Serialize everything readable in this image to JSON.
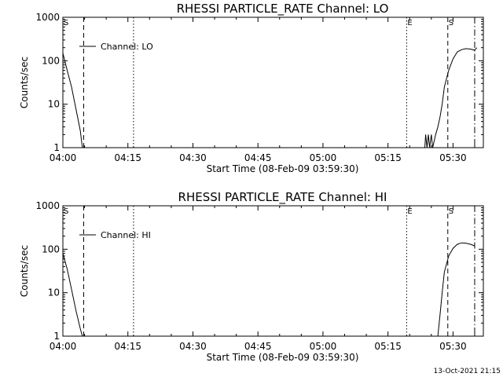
{
  "chart_data": [
    {
      "type": "line",
      "title": "RHESSI PARTICLE_RATE Channel: LO",
      "xlabel": "Start Time (08-Feb-09 03:59:30)",
      "ylabel": "Counts/sec",
      "xlim": [
        "04:00",
        "05:37"
      ],
      "xticks": [
        "04:00",
        "04:15",
        "04:30",
        "04:45",
        "05:00",
        "05:15",
        "05:30"
      ],
      "ylog": true,
      "ylim": [
        1,
        1000
      ],
      "yticks": [
        "1",
        "10",
        "100",
        "1000"
      ],
      "legend_position": "top-left",
      "series": [
        {
          "name": "Channel: LO",
          "x": [
            "04:00",
            "04:01",
            "04:02",
            "04:03",
            "04:04",
            "04:04.5",
            "05:23.5",
            "05:23.7",
            "05:24",
            "05:24.3",
            "05:24.6",
            "05:25",
            "05:25.3",
            "05:26",
            "05:26.5",
            "05:27",
            "05:27.5",
            "05:28",
            "05:29",
            "05:30",
            "05:31",
            "05:32",
            "05:33",
            "05:34",
            "05:35",
            "05:35.5"
          ],
          "y": [
            150,
            60,
            25,
            8,
            2.5,
            1,
            1,
            2,
            1,
            2,
            1,
            2,
            1,
            2,
            3,
            5,
            10,
            25,
            60,
            110,
            160,
            180,
            190,
            185,
            175,
            200
          ]
        }
      ],
      "markers": [
        {
          "label": "S",
          "time": "04:00",
          "style": "solid"
        },
        {
          "label": "",
          "time": "04:04.8",
          "style": "dashed"
        },
        {
          "label": "",
          "time": "04:16.3",
          "style": "dotted"
        },
        {
          "label": "E",
          "time": "05:19.3",
          "style": "dotted"
        },
        {
          "label": "S",
          "time": "05:28.8",
          "style": "dashed"
        },
        {
          "label": "",
          "time": "05:35",
          "style": "dashdot"
        }
      ]
    },
    {
      "type": "line",
      "title": "RHESSI PARTICLE_RATE Channel: HI",
      "xlabel": "Start Time (08-Feb-09 03:59:30)",
      "ylabel": "Counts/sec",
      "xlim": [
        "04:00",
        "05:37"
      ],
      "xticks": [
        "04:00",
        "04:15",
        "04:30",
        "04:45",
        "05:00",
        "05:15",
        "05:30"
      ],
      "ylog": true,
      "ylim": [
        1,
        1000
      ],
      "yticks": [
        "1",
        "10",
        "100",
        "1000"
      ],
      "legend_position": "top-left",
      "series": [
        {
          "name": "Channel: HI",
          "x": [
            "04:00",
            "04:01",
            "04:02",
            "04:03",
            "04:04",
            "04:04.5",
            "05:26.5",
            "05:27",
            "05:27.5",
            "05:28",
            "05:29",
            "05:30",
            "05:31",
            "05:32",
            "05:33",
            "05:34",
            "05:35"
          ],
          "y": [
            80,
            35,
            12,
            4,
            1.5,
            1,
            1,
            3,
            10,
            30,
            70,
            105,
            130,
            140,
            138,
            130,
            120
          ]
        }
      ],
      "markers": [
        {
          "label": "S",
          "time": "04:00",
          "style": "solid"
        },
        {
          "label": "",
          "time": "04:04.8",
          "style": "dashed"
        },
        {
          "label": "",
          "time": "04:16.3",
          "style": "dotted"
        },
        {
          "label": "E",
          "time": "05:19.3",
          "style": "dotted"
        },
        {
          "label": "S",
          "time": "05:28.8",
          "style": "dashed"
        },
        {
          "label": "",
          "time": "05:35",
          "style": "dashdot"
        }
      ]
    }
  ],
  "footer": {
    "timestamp": "13-Oct-2021 21:15"
  }
}
